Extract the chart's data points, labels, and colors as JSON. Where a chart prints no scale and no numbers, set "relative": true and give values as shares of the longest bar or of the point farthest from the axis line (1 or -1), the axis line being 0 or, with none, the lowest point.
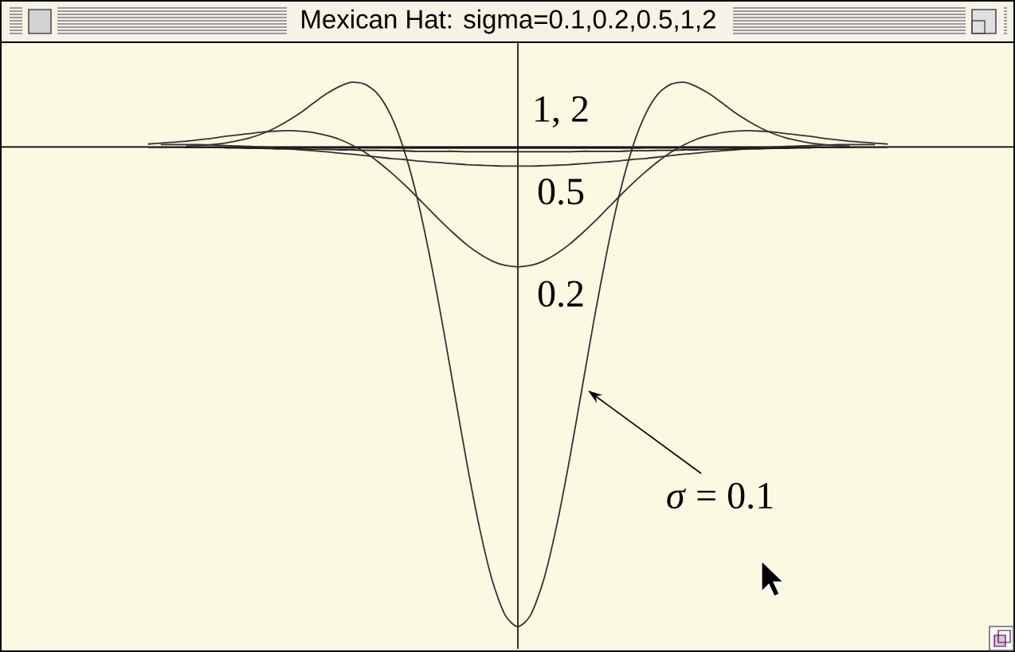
{
  "chart_data": {
    "type": "line",
    "title": "Mexican Hat: sigma=0.1,0.2,0.5,1,2",
    "relative": true,
    "categories": [
      null,
      null,
      null,
      null,
      null,
      null,
      null,
      null,
      null,
      null,
      null,
      null,
      null,
      null,
      null,
      null,
      null,
      null,
      null,
      null,
      null,
      null,
      null,
      null,
      null,
      null,
      null,
      null,
      null,
      null,
      null,
      null,
      null,
      null,
      null,
      null,
      null,
      null,
      null,
      null,
      null,
      null,
      null,
      null,
      null,
      null,
      null,
      null,
      null,
      null,
      null,
      null,
      null,
      null,
      null,
      null,
      null,
      null,
      null
    ],
    "series": [
      {
        "name": "*σ* = 0.1",
        "color": "#333333",
        "values": [
          null,
          null,
          null,
          0.002,
          0.003,
          0.005,
          0.008,
          0.013,
          0.019,
          0.028,
          0.04,
          0.055,
          0.072,
          0.092,
          0.111,
          0.126,
          0.135,
          0.131,
          0.111,
          0.068,
          0,
          -0.095,
          -0.216,
          -0.356,
          -0.508,
          -0.659,
          -0.795,
          -0.905,
          -0.976,
          -1,
          -0.976,
          -0.905,
          -0.795,
          -0.659,
          -0.508,
          -0.356,
          -0.216,
          -0.095,
          0,
          0.068,
          0.111,
          0.131,
          0.135,
          0.126,
          0.111,
          0.092,
          0.072,
          0.055,
          0.04,
          0.028,
          0.019,
          0.013,
          0.008,
          0.005,
          0.003,
          0.002,
          null,
          null,
          null
        ]
      },
      {
        "name": "0.2",
        "color": "#333333",
        "values": [
          0.006,
          0.008,
          0.01,
          0.012,
          0.015,
          0.018,
          0.022,
          0.025,
          0.028,
          0.031,
          0.033,
          0.034,
          0.033,
          0.03,
          0.024,
          0.016,
          0.004,
          -0.011,
          -0.03,
          -0.052,
          -0.076,
          -0.102,
          -0.129,
          -0.156,
          -0.181,
          -0.204,
          -0.223,
          -0.238,
          -0.247,
          -0.25,
          -0.247,
          -0.238,
          -0.223,
          -0.204,
          -0.181,
          -0.156,
          -0.129,
          -0.102,
          -0.076,
          -0.052,
          -0.03,
          -0.011,
          0.004,
          0.016,
          0.024,
          0.03,
          0.033,
          0.034,
          0.033,
          0.031,
          0.028,
          0.025,
          0.022,
          0.018,
          0.015,
          0.012,
          0.01,
          0.008,
          0.006
        ]
      },
      {
        "name": "0.5",
        "color": "#333333",
        "values": [
          null,
          0.005,
          0.005,
          0.005,
          0.005,
          0.004,
          0.003,
          0.002,
          0.001,
          0,
          -0.002,
          -0.004,
          -0.006,
          -0.008,
          -0.01,
          -0.013,
          -0.015,
          -0.018,
          -0.021,
          -0.024,
          -0.026,
          -0.029,
          -0.031,
          -0.033,
          -0.035,
          -0.037,
          -0.038,
          -0.039,
          -0.04,
          -0.04,
          -0.04,
          -0.039,
          -0.038,
          -0.037,
          -0.035,
          -0.033,
          -0.031,
          -0.029,
          -0.026,
          -0.024,
          -0.021,
          -0.018,
          -0.015,
          -0.013,
          -0.01,
          -0.008,
          -0.006,
          -0.004,
          -0.002,
          0,
          0.001,
          0.002,
          0.003,
          0.004,
          0.005,
          0.005,
          0.005,
          0.005,
          null
        ]
      },
      {
        "color": "#222222",
        "values": [
          null,
          null,
          null,
          null,
          null,
          null,
          -0.002,
          -0.002,
          -0.003,
          -0.003,
          -0.004,
          -0.004,
          -0.004,
          -0.005,
          -0.005,
          -0.006,
          -0.006,
          -0.007,
          -0.007,
          -0.008,
          -0.008,
          -0.009,
          -0.009,
          -0.009,
          -0.009,
          -0.01,
          -0.01,
          -0.01,
          -0.01,
          -0.01,
          -0.01,
          -0.01,
          -0.01,
          -0.01,
          -0.009,
          -0.009,
          -0.009,
          -0.009,
          -0.008,
          -0.008,
          -0.007,
          -0.007,
          -0.006,
          -0.006,
          -0.005,
          -0.005,
          -0.004,
          -0.004,
          -0.004,
          -0.003,
          -0.003,
          -0.002,
          -0.002,
          null,
          null,
          null,
          null,
          null,
          null
        ]
      },
      {
        "color": "#222222",
        "values": [
          -0.0007,
          -0.0008,
          -0.0009,
          -0.001,
          -0.001,
          -0.0011,
          -0.0012,
          -0.0013,
          -0.0014,
          -0.0015,
          -0.0016,
          -0.0016,
          -0.0017,
          -0.0018,
          -0.0019,
          -0.0019,
          -0.002,
          -0.0021,
          -0.0022,
          -0.0022,
          -0.0023,
          -0.0023,
          -0.0024,
          -0.0024,
          -0.0024,
          -0.0025,
          -0.0025,
          -0.0025,
          -0.0025,
          -0.0025,
          -0.0025,
          -0.0025,
          -0.0025,
          -0.0025,
          -0.0024,
          -0.0024,
          -0.0024,
          -0.0023,
          -0.0023,
          -0.0022,
          -0.0022,
          -0.0021,
          -0.002,
          -0.0019,
          -0.0019,
          -0.0018,
          -0.0017,
          -0.0016,
          -0.0016,
          -0.0015,
          -0.0014,
          -0.0013,
          -0.0012,
          -0.0011,
          -0.001,
          -0.001,
          -0.0009,
          -0.0008,
          -0.0007
        ]
      }
    ],
    "annotations": [
      "1, 2"
    ]
  }
}
